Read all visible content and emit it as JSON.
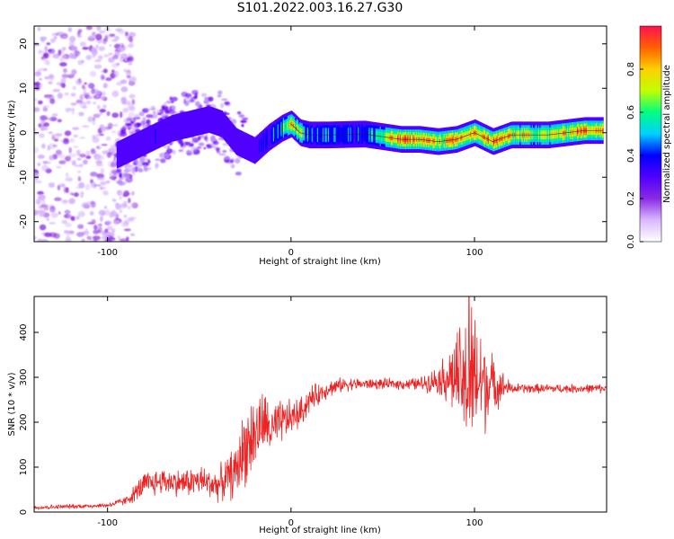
{
  "page": {
    "title": "S101.2022.003.16.27.G30"
  },
  "chart_data": [
    {
      "type": "heatmap",
      "title": "S101.2022.003.16.27.G30",
      "xlabel": "Height of straight line (km)",
      "ylabel": "Frequency (Hz)",
      "xlim": [
        -140,
        172
      ],
      "ylim": [
        -24.5,
        24
      ],
      "x_ticks": [
        -100,
        0,
        100
      ],
      "x_tick_labels": [
        "-100",
        "0",
        "100"
      ],
      "y_ticks": [
        -20,
        -10,
        0,
        10,
        20
      ],
      "y_tick_labels": [
        "-20",
        "-10",
        "0",
        "10",
        "20"
      ],
      "grid": false,
      "colorbar": {
        "label": "Normalized spectral amplitude",
        "range": [
          0,
          1
        ],
        "ticks": [
          0.0,
          0.2,
          0.4,
          0.6,
          0.8
        ],
        "tick_labels": [
          "0.0",
          "0.2",
          "0.4",
          "0.6",
          "0.8"
        ],
        "colormap": [
          "#ffffff",
          "#d9b8ff",
          "#8a2be2",
          "#5000ff",
          "#0000ff",
          "#00d0ff",
          "#00ff80",
          "#c0ff00",
          "#ffd000",
          "#ff6000",
          "#ff1050"
        ]
      },
      "ridge": {
        "description": "dominant frequency ridge",
        "x": [
          -95,
          -85,
          -75,
          -65,
          -55,
          -45,
          -38,
          -30,
          -20,
          -12,
          -5,
          0,
          5,
          10,
          20,
          40,
          60,
          70,
          80,
          90,
          100,
          110,
          120,
          140,
          160,
          170
        ],
        "y": [
          -5,
          -3,
          -1,
          1,
          2,
          3,
          2,
          -2,
          -4,
          -1,
          1,
          2,
          0,
          -0.5,
          -0.5,
          -0.3,
          -1.5,
          -1.5,
          -2,
          -1.5,
          0,
          -2,
          -0.5,
          -0.5,
          0.5,
          0.5
        ],
        "peak_amplitude": [
          0.3,
          0.35,
          0.4,
          0.35,
          0.4,
          0.35,
          0.3,
          0.35,
          0.4,
          0.45,
          0.6,
          0.85,
          0.7,
          0.5,
          0.55,
          0.5,
          0.9,
          0.85,
          0.8,
          0.85,
          0.8,
          0.9,
          0.8,
          0.75,
          0.9,
          0.85
        ]
      },
      "noise_region": {
        "x_range": [
          -140,
          -95
        ],
        "y_range": [
          -24.5,
          24
        ],
        "amplitude": "low (0.05-0.2)"
      }
    },
    {
      "type": "line",
      "xlabel": "Height of straight line (km)",
      "ylabel": "SNR (10 * v/v)",
      "xlim": [
        -140,
        172
      ],
      "ylim": [
        0,
        480
      ],
      "x_ticks": [
        -100,
        0,
        100
      ],
      "x_tick_labels": [
        "-100",
        "0",
        "100"
      ],
      "y_ticks": [
        0,
        100,
        200,
        300,
        400
      ],
      "y_tick_labels": [
        "0",
        "100",
        "200",
        "300",
        "400"
      ],
      "grid": false,
      "series": [
        {
          "color": "#ee2222",
          "envelope_x": [
            -140,
            -100,
            -90,
            -80,
            -70,
            -60,
            -50,
            -40,
            -30,
            -25,
            -20,
            -15,
            -10,
            -5,
            0,
            5,
            10,
            20,
            30,
            40,
            50,
            60,
            70,
            80,
            85,
            90,
            95,
            97,
            100,
            105,
            110,
            120,
            140,
            160,
            172
          ],
          "envelope_y": [
            10,
            15,
            25,
            60,
            70,
            65,
            70,
            60,
            90,
            150,
            170,
            200,
            180,
            200,
            210,
            220,
            250,
            275,
            285,
            285,
            285,
            285,
            285,
            295,
            300,
            300,
            280,
            290,
            290,
            290,
            285,
            275,
            275,
            275,
            275
          ],
          "noise_amplitude": [
            5,
            5,
            10,
            30,
            30,
            30,
            35,
            35,
            60,
            90,
            90,
            70,
            60,
            50,
            40,
            35,
            30,
            20,
            15,
            12,
            12,
            12,
            15,
            30,
            60,
            100,
            150,
            180,
            160,
            120,
            60,
            12,
            10,
            10,
            10
          ],
          "peak": {
            "x": 97,
            "y": 480
          }
        }
      ]
    }
  ]
}
